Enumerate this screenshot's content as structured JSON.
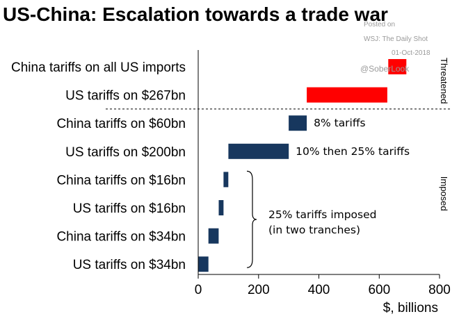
{
  "chart_data": {
    "type": "bar",
    "orientation": "horizontal",
    "subtype": "floating",
    "title": "US-China: Escalation towards a trade war",
    "xlabel": "$, billions",
    "xlim": [
      0,
      800
    ],
    "xticks": [
      0,
      200,
      400,
      600,
      800
    ],
    "grid": false,
    "groups": [
      {
        "name": "Threatened",
        "rows": [
          0,
          1
        ]
      },
      {
        "name": "Imposed",
        "rows": [
          2,
          3,
          4,
          5,
          6,
          7
        ]
      }
    ],
    "rows": [
      {
        "label": "China tariffs on all US imports",
        "start": 630,
        "end": 690,
        "color": "#ff0000"
      },
      {
        "label": "US tariffs on $267bn",
        "start": 360,
        "end": 627,
        "color": "#ff0000"
      },
      {
        "label": "China tariffs on $60bn",
        "start": 300,
        "end": 360,
        "color": "#17375e"
      },
      {
        "label": "US tariffs on $200bn",
        "start": 100,
        "end": 300,
        "color": "#17375e"
      },
      {
        "label": "China tariffs on $16bn",
        "start": 84,
        "end": 100,
        "color": "#17375e"
      },
      {
        "label": "US tariffs on $16bn",
        "start": 68,
        "end": 84,
        "color": "#17375e"
      },
      {
        "label": "China tariffs on $34bn",
        "start": 34,
        "end": 68,
        "color": "#17375e"
      },
      {
        "label": "US tariffs on $34bn",
        "start": 0,
        "end": 34,
        "color": "#17375e"
      }
    ],
    "annotations": [
      {
        "text": "8% tariffs",
        "row": 2
      },
      {
        "text": "10% then 25% tariffs",
        "row": 3
      },
      {
        "lines": [
          "25% tariffs imposed",
          "(in two tranches)"
        ],
        "rows": [
          4,
          7
        ]
      }
    ]
  },
  "watermark": {
    "line1": "Posted on",
    "line2": "WSJ: The Daily Shot",
    "line3": "01-Oct-2018",
    "line4": "@SoberLook"
  }
}
